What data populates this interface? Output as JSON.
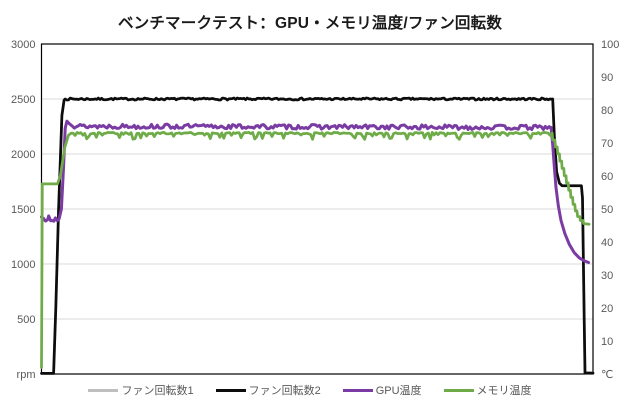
{
  "chart_data": {
    "type": "line",
    "title": "ベンチマークテスト：GPU・メモリ温度/ファン回転数",
    "legend_position": "bottom",
    "grid": "horizontal",
    "gridlines": {
      "color": "#D9D9D9",
      "values_left_axis": [
        500,
        1000,
        1500,
        2000,
        2500
      ]
    },
    "frame_color": "#000000",
    "left_axis": {
      "unit_label": "rpm",
      "min": 0,
      "max": 3000,
      "tick_step": 500,
      "ticks": [
        {
          "label": "3000",
          "value": 3000
        },
        {
          "label": "2500",
          "value": 2500
        },
        {
          "label": "2000",
          "value": 2000
        },
        {
          "label": "1500",
          "value": 1500
        },
        {
          "label": "1000",
          "value": 1000
        },
        {
          "label": "500",
          "value": 500
        },
        {
          "label": "rpm",
          "value": 0
        }
      ]
    },
    "right_axis": {
      "unit_label": "℃",
      "min": 0,
      "max": 100,
      "tick_step": 10,
      "ticks": [
        {
          "label": "100",
          "value": 100
        },
        {
          "label": "90",
          "value": 90
        },
        {
          "label": "80",
          "value": 80
        },
        {
          "label": "70",
          "value": 70
        },
        {
          "label": "60",
          "value": 60
        },
        {
          "label": "50",
          "value": 50
        },
        {
          "label": "40",
          "value": 40
        },
        {
          "label": "30",
          "value": 30
        },
        {
          "label": "20",
          "value": 20
        },
        {
          "label": "10",
          "value": 10
        },
        {
          "label": "℃",
          "value": 0
        }
      ]
    },
    "series": [
      {
        "key": "fan-speed-1",
        "name": "ファン回転数1",
        "color": "#BFBFBF",
        "axis": "left",
        "width": 2.5,
        "seed": 7,
        "noise": {
          "amp": 9,
          "bias": 0,
          "step": 0.3
        },
        "note": "identical to fan-speed-2, hidden beneath it",
        "points": [
          [
            0,
            5,
            0
          ],
          [
            2.2,
            5,
            0
          ],
          [
            2.6,
            600,
            0
          ],
          [
            3.1,
            1500,
            0
          ],
          [
            3.7,
            2350,
            0
          ],
          [
            4.1,
            2490,
            0
          ],
          [
            4.3,
            2500,
            1
          ],
          [
            92.7,
            2500,
            0
          ],
          [
            93.0,
            2150,
            0
          ],
          [
            93.4,
            1840,
            0
          ],
          [
            93.9,
            1735,
            0
          ],
          [
            94.4,
            1712,
            0
          ],
          [
            97.9,
            1712,
            0
          ],
          [
            98.1,
            1600,
            0
          ],
          [
            98.4,
            500,
            0
          ],
          [
            98.55,
            10,
            0
          ],
          [
            100,
            8,
            0
          ]
        ]
      },
      {
        "key": "fan-speed-2",
        "name": "ファン回転数2",
        "color": "#0D0D0D",
        "axis": "left",
        "width": 2.75,
        "seed": 7,
        "noise": {
          "amp": 9,
          "bias": 0,
          "step": 0.3
        },
        "points": [
          [
            0,
            5,
            0
          ],
          [
            2.2,
            5,
            0
          ],
          [
            2.6,
            600,
            0
          ],
          [
            3.1,
            1500,
            0
          ],
          [
            3.7,
            2350,
            0
          ],
          [
            4.1,
            2490,
            0
          ],
          [
            4.3,
            2500,
            1
          ],
          [
            92.7,
            2500,
            0
          ],
          [
            93.0,
            2150,
            0
          ],
          [
            93.4,
            1840,
            0
          ],
          [
            93.9,
            1735,
            0
          ],
          [
            94.4,
            1712,
            0
          ],
          [
            97.9,
            1712,
            0
          ],
          [
            98.1,
            1600,
            0
          ],
          [
            98.4,
            500,
            0
          ],
          [
            98.55,
            10,
            0
          ],
          [
            100,
            8,
            0
          ]
        ]
      },
      {
        "key": "gpu-temp",
        "name": "GPU温度",
        "color": "#7A3CA3",
        "axis": "right",
        "width": 3,
        "seed": 13,
        "noise": {
          "amp": 0.7,
          "bias": 0,
          "step": 0.35
        },
        "points": [
          [
            0,
            47.6,
            1
          ],
          [
            0.8,
            46.4,
            1
          ],
          [
            1.3,
            47.9,
            1
          ],
          [
            1.9,
            46.5,
            1
          ],
          [
            2.5,
            47.3,
            1
          ],
          [
            3.2,
            47.0,
            0
          ],
          [
            3.6,
            50,
            0
          ],
          [
            4.0,
            63,
            0
          ],
          [
            4.3,
            74.5,
            0
          ],
          [
            4.6,
            76.6,
            0
          ],
          [
            5.1,
            75.8,
            0
          ],
          [
            5.6,
            75.1,
            1
          ],
          [
            92.4,
            74.7,
            0
          ],
          [
            92.7,
            69.5,
            0
          ],
          [
            93.0,
            62.5,
            0
          ],
          [
            93.3,
            56.5,
            0
          ],
          [
            93.7,
            51.0,
            0
          ],
          [
            94.2,
            46.5,
            0
          ],
          [
            94.9,
            42.5,
            0
          ],
          [
            95.7,
            39.3,
            0
          ],
          [
            96.6,
            36.8,
            0
          ],
          [
            97.5,
            35.2,
            0
          ],
          [
            98.4,
            34.3,
            0
          ],
          [
            99.2,
            33.8,
            0
          ]
        ]
      },
      {
        "key": "memory-temp",
        "name": "メモリ温度",
        "color": "#6FAC49",
        "axis": "right",
        "width": 2.75,
        "seed": 21,
        "noise": {
          "amp": 0.95,
          "bias": -1,
          "step": 0.35
        },
        "points": [
          [
            0,
            2,
            0
          ],
          [
            0.15,
            57.6,
            0
          ],
          [
            2.9,
            57.6,
            0
          ],
          [
            3.4,
            60,
            0
          ],
          [
            4.2,
            68.5,
            0
          ],
          [
            4.9,
            72.4,
            0
          ],
          [
            5.4,
            73.0,
            1
          ],
          [
            92.6,
            73.0,
            0
          ],
          [
            92.7,
            70.9,
            0
          ],
          [
            93.1,
            70.9,
            0
          ],
          [
            93.2,
            68.8,
            0
          ],
          [
            93.5,
            68.8,
            0
          ],
          [
            93.6,
            66.7,
            0
          ],
          [
            93.9,
            66.7,
            0
          ],
          [
            94.0,
            64.5,
            0
          ],
          [
            94.3,
            64.5,
            0
          ],
          [
            94.4,
            62.3,
            0
          ],
          [
            94.7,
            62.3,
            0
          ],
          [
            94.8,
            60.1,
            0
          ],
          [
            95.1,
            60.1,
            0
          ],
          [
            95.2,
            57.9,
            0
          ],
          [
            95.5,
            57.9,
            0
          ],
          [
            95.6,
            55.7,
            0
          ],
          [
            95.9,
            55.7,
            0
          ],
          [
            96.0,
            53.5,
            0
          ],
          [
            96.3,
            53.5,
            0
          ],
          [
            96.4,
            51.4,
            0
          ],
          [
            96.7,
            51.4,
            0
          ],
          [
            96.8,
            49.4,
            0
          ],
          [
            97.1,
            49.4,
            0
          ],
          [
            97.2,
            47.7,
            0
          ],
          [
            97.6,
            47.7,
            0
          ],
          [
            97.7,
            46.5,
            0
          ],
          [
            98.2,
            46.5,
            0
          ],
          [
            98.3,
            45.6,
            0
          ],
          [
            99.3,
            45.4,
            0
          ]
        ]
      }
    ]
  }
}
